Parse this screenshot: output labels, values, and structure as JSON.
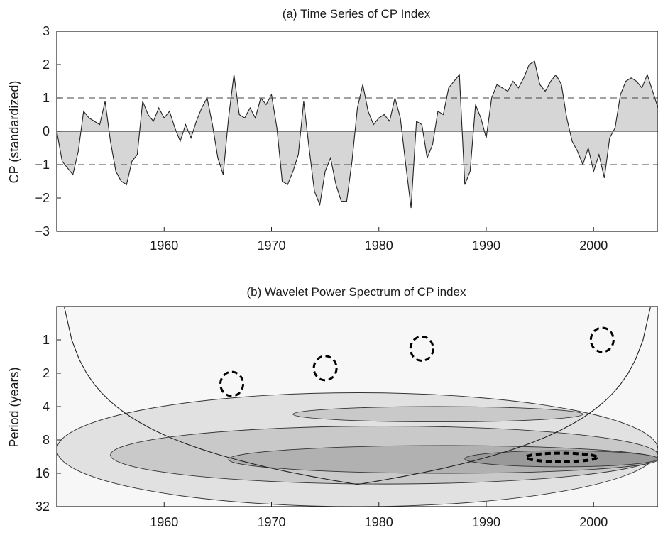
{
  "chart_data": [
    {
      "type": "area",
      "title": "(a) Time Series of CP Index",
      "xlabel": "",
      "ylabel": "CP (standardized)",
      "xlim": [
        1950,
        2006
      ],
      "ylim": [
        -3,
        3
      ],
      "x_ticks": [
        1960,
        1970,
        1980,
        1990,
        2000
      ],
      "y_ticks": [
        3,
        2,
        1,
        0,
        -1,
        -2,
        -3
      ],
      "reference_lines": [
        1,
        0,
        -1
      ],
      "fill_color": "#d6d6d6",
      "line_color": "#222222",
      "series": [
        {
          "x": [
            1950.0,
            1950.5,
            1951.0,
            1951.5,
            1952.0,
            1952.5,
            1953.0,
            1953.5,
            1954.0,
            1954.5,
            1955.0,
            1955.5,
            1956.0,
            1956.5,
            1957.0,
            1957.5,
            1958.0,
            1958.5,
            1959.0,
            1959.5,
            1960.0,
            1960.5,
            1961.0,
            1961.5,
            1962.0,
            1962.5,
            1963.0,
            1963.5,
            1964.0,
            1964.5,
            1965.0,
            1965.5,
            1966.0,
            1966.5,
            1967.0,
            1967.5,
            1968.0,
            1968.5,
            1969.0,
            1969.5,
            1970.0,
            1970.5,
            1971.0,
            1971.5,
            1972.0,
            1972.5,
            1973.0,
            1973.5,
            1974.0,
            1974.5,
            1975.0,
            1975.5,
            1976.0,
            1976.5,
            1977.0,
            1977.5,
            1978.0,
            1978.5,
            1979.0,
            1979.5,
            1980.0,
            1980.5,
            1981.0,
            1981.5,
            1982.0,
            1982.5,
            1983.0,
            1983.5,
            1984.0,
            1984.5,
            1985.0,
            1985.5,
            1986.0,
            1986.5,
            1987.0,
            1987.5,
            1988.0,
            1988.5,
            1989.0,
            1989.5,
            1990.0,
            1990.5,
            1991.0,
            1991.5,
            1992.0,
            1992.5,
            1993.0,
            1993.5,
            1994.0,
            1994.5,
            1995.0,
            1995.5,
            1996.0,
            1996.5,
            1997.0,
            1997.5,
            1998.0,
            1998.5,
            1999.0,
            1999.5,
            2000.0,
            2000.5,
            2001.0,
            2001.5,
            2002.0,
            2002.5,
            2003.0,
            2003.5,
            2004.0,
            2004.5,
            2005.0,
            2005.5,
            2006.0
          ],
          "y": [
            0.0,
            -0.9,
            -1.1,
            -1.3,
            -0.6,
            0.6,
            0.4,
            0.3,
            0.2,
            0.9,
            -0.3,
            -1.2,
            -1.5,
            -1.6,
            -0.9,
            -0.7,
            0.9,
            0.5,
            0.3,
            0.7,
            0.4,
            0.6,
            0.1,
            -0.3,
            0.2,
            -0.2,
            0.3,
            0.7,
            1.0,
            0.2,
            -0.8,
            -1.3,
            0.4,
            1.7,
            0.5,
            0.4,
            0.7,
            0.4,
            1.0,
            0.8,
            1.1,
            0.1,
            -1.5,
            -1.6,
            -1.2,
            -0.7,
            0.9,
            -0.5,
            -1.8,
            -2.2,
            -1.2,
            -0.8,
            -1.6,
            -2.1,
            -2.1,
            -0.9,
            0.7,
            1.4,
            0.6,
            0.2,
            0.4,
            0.5,
            0.3,
            1.0,
            0.4,
            -1.0,
            -2.3,
            0.3,
            0.2,
            -0.8,
            -0.4,
            0.6,
            0.5,
            1.3,
            1.5,
            1.7,
            -1.6,
            -1.2,
            0.8,
            0.4,
            -0.2,
            1.0,
            1.4,
            1.3,
            1.2,
            1.5,
            1.3,
            1.6,
            2.0,
            2.1,
            1.4,
            1.2,
            1.5,
            1.7,
            1.4,
            0.4,
            -0.3,
            -0.6,
            -1.0,
            -0.5,
            -1.2,
            -0.7,
            -1.4,
            -0.2,
            0.1,
            1.1,
            1.5,
            1.6,
            1.5,
            1.3,
            1.7,
            1.2,
            0.7
          ]
        }
      ]
    },
    {
      "type": "heatmap",
      "title": "(b) Wavelet Power Spectrum of CP index",
      "xlabel": "",
      "ylabel": "Period (years)",
      "xlim": [
        1950,
        2006
      ],
      "y_scale": "log2",
      "ylim": [
        0.5,
        32
      ],
      "x_ticks": [
        1960,
        1970,
        1980,
        1990,
        2000
      ],
      "y_ticks": [
        1,
        2,
        4,
        8,
        16,
        32
      ],
      "cone_of_influence": true,
      "shading": "grayscale, darker = higher power",
      "significance_contour_style": "dashed black",
      "levels": [
        0,
        1,
        2,
        3,
        4
      ],
      "regions": [
        {
          "x_range": [
            1950,
            2006
          ],
          "period_range": [
            0.5,
            32
          ],
          "level": 0
        },
        {
          "x_range": [
            1950,
            2006
          ],
          "period_range": [
            3,
            32
          ],
          "level": 1
        },
        {
          "x_range": [
            1955,
            2006
          ],
          "period_range": [
            6,
            20
          ],
          "level": 2
        },
        {
          "x_range": [
            1972,
            1999
          ],
          "period_range": [
            4,
            5.5
          ],
          "level": 2
        },
        {
          "x_range": [
            1966,
            2006
          ],
          "period_range": [
            9,
            16
          ],
          "level": 3
        },
        {
          "x_range": [
            1988,
            2006
          ],
          "period_range": [
            10,
            14
          ],
          "level": 4
        }
      ],
      "significant_regions": [
        {
          "x_center": 1966.3,
          "period_center": 2.5
        },
        {
          "x_center": 1975.0,
          "period_center": 1.8
        },
        {
          "x_center": 1984.0,
          "period_center": 1.2
        },
        {
          "x_center": 2000.8,
          "period_center": 1.0
        },
        {
          "x_center": 1997.0,
          "period_center": 11.5
        }
      ]
    }
  ]
}
